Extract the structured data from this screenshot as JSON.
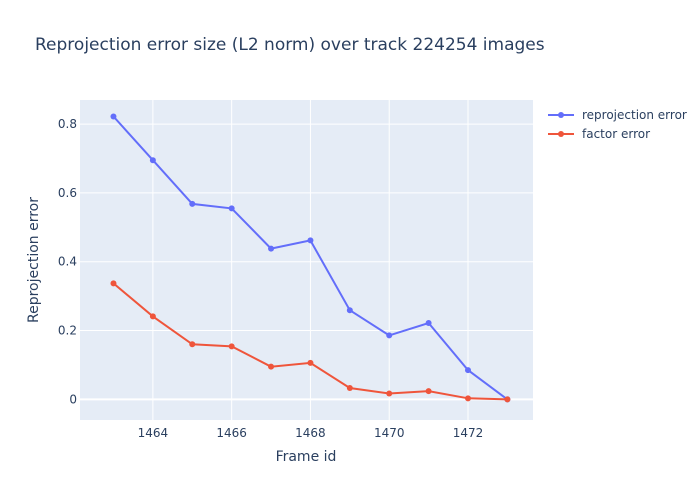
{
  "chart_data": {
    "type": "line",
    "title": "Reprojection error size (L2 norm) over track 224254 images",
    "xlabel": "Frame id",
    "ylabel": "Reprojection error",
    "x": [
      1463,
      1464,
      1465,
      1466,
      1467,
      1468,
      1469,
      1470,
      1471,
      1472,
      1473
    ],
    "xlim": [
      1462.15,
      1473.65
    ],
    "ylim": [
      -0.06,
      0.87
    ],
    "xticks": [
      1464,
      1466,
      1468,
      1470,
      1472
    ],
    "yticks": [
      0,
      0.2,
      0.4,
      0.6,
      0.8
    ],
    "ytick_labels": [
      "0",
      "0.2",
      "0.4",
      "0.6",
      "0.8"
    ],
    "grid": true,
    "legend_position": "top-right outside plot",
    "background": "#e5ecf6",
    "series": [
      {
        "name": "reprojection error",
        "color": "#636efa",
        "values": [
          0.822,
          0.695,
          0.568,
          0.555,
          0.438,
          0.462,
          0.259,
          0.186,
          0.222,
          0.085,
          0.0
        ]
      },
      {
        "name": "factor error",
        "color": "#ef553b",
        "values": [
          0.337,
          0.241,
          0.16,
          0.154,
          0.095,
          0.106,
          0.033,
          0.017,
          0.024,
          0.003,
          0.0
        ]
      }
    ]
  }
}
